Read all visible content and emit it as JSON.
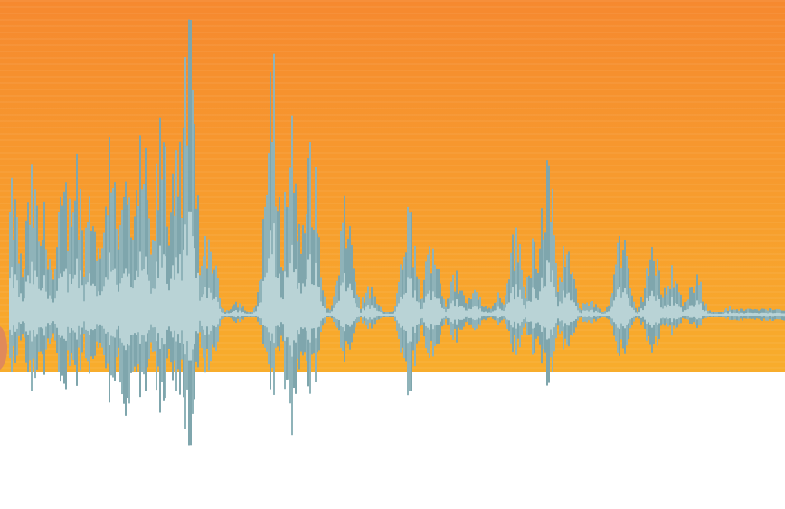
{
  "scene": {
    "description_kind": "decorative audio waveform banner",
    "colors": {
      "orange_top": "#f6892f",
      "orange_bottom": "#f8ad2c",
      "background_lower": "#ffffff",
      "wave_outer": "#8fb3b9",
      "wave_inner": "#b9d3d6",
      "wave_dark": "#7fa6ad"
    },
    "waveform_peaks": [
      {
        "t": 0.015,
        "up": 0.45,
        "down": 0.3
      },
      {
        "t": 0.04,
        "up": 0.5,
        "down": 0.4
      },
      {
        "t": 0.055,
        "up": 0.38,
        "down": 0.32
      },
      {
        "t": 0.08,
        "up": 0.45,
        "down": 0.4
      },
      {
        "t": 0.095,
        "up": 0.6,
        "down": 0.42
      },
      {
        "t": 0.115,
        "up": 0.48,
        "down": 0.38
      },
      {
        "t": 0.14,
        "up": 0.7,
        "down": 0.55
      },
      {
        "t": 0.16,
        "up": 0.5,
        "down": 0.6
      },
      {
        "t": 0.18,
        "up": 0.62,
        "down": 0.45
      },
      {
        "t": 0.205,
        "up": 0.7,
        "down": 0.55
      },
      {
        "t": 0.225,
        "up": 0.75,
        "down": 0.55
      },
      {
        "t": 0.24,
        "up": 1.0,
        "down": 0.7
      },
      {
        "t": 0.265,
        "up": 0.3,
        "down": 0.35
      },
      {
        "t": 0.3,
        "up": 0.05,
        "down": 0.05
      },
      {
        "t": 0.345,
        "up": 0.82,
        "down": 0.4
      },
      {
        "t": 0.37,
        "up": 0.68,
        "down": 0.65
      },
      {
        "t": 0.395,
        "up": 0.62,
        "down": 0.45
      },
      {
        "t": 0.44,
        "up": 0.4,
        "down": 0.25
      },
      {
        "t": 0.47,
        "up": 0.1,
        "down": 0.08
      },
      {
        "t": 0.52,
        "up": 0.38,
        "down": 0.45
      },
      {
        "t": 0.55,
        "up": 0.3,
        "down": 0.3
      },
      {
        "t": 0.58,
        "up": 0.15,
        "down": 0.15
      },
      {
        "t": 0.605,
        "up": 0.1,
        "down": 0.1
      },
      {
        "t": 0.635,
        "up": 0.08,
        "down": 0.06
      },
      {
        "t": 0.655,
        "up": 0.3,
        "down": 0.22
      },
      {
        "t": 0.68,
        "up": 0.3,
        "down": 0.25
      },
      {
        "t": 0.695,
        "up": 0.55,
        "down": 0.4
      },
      {
        "t": 0.72,
        "up": 0.25,
        "down": 0.2
      },
      {
        "t": 0.75,
        "up": 0.06,
        "down": 0.06
      },
      {
        "t": 0.79,
        "up": 0.3,
        "down": 0.25
      },
      {
        "t": 0.83,
        "up": 0.25,
        "down": 0.22
      },
      {
        "t": 0.855,
        "up": 0.18,
        "down": 0.12
      },
      {
        "t": 0.885,
        "up": 0.15,
        "down": 0.08
      },
      {
        "t": 0.93,
        "up": 0.03,
        "down": 0.03
      },
      {
        "t": 1.0,
        "up": 0.02,
        "down": 0.02
      }
    ]
  }
}
